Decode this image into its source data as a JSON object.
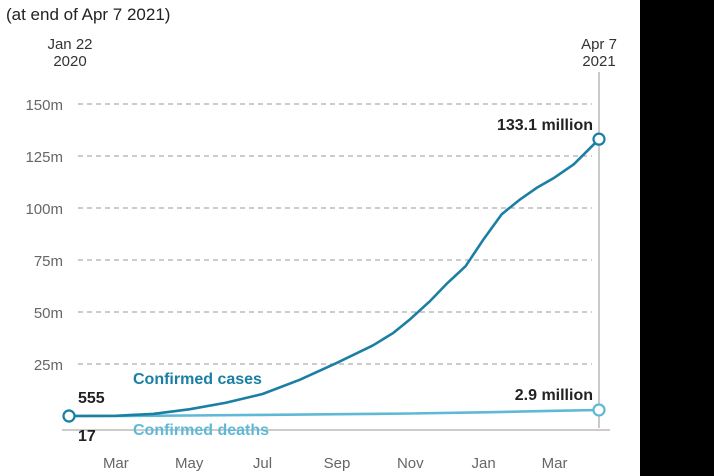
{
  "header": {
    "subtitle": "(at end of Apr 7 2021)"
  },
  "chart_data": {
    "type": "line",
    "subtitle": "(at end of Apr 7 2021)",
    "start_label": [
      "Jan 22",
      "2020"
    ],
    "end_label": [
      "Apr 7",
      "2021"
    ],
    "ylim": [
      0,
      150
    ],
    "y_unit": "m",
    "y_ticks": [
      {
        "value": 25,
        "label": "25m"
      },
      {
        "value": 50,
        "label": "50m"
      },
      {
        "value": 75,
        "label": "75m"
      },
      {
        "value": 100,
        "label": "100m"
      },
      {
        "value": 125,
        "label": "125m"
      },
      {
        "value": 150,
        "label": "150m"
      }
    ],
    "x_ticks": [
      {
        "day": 39,
        "label": "Mar"
      },
      {
        "day": 100,
        "label": "May"
      },
      {
        "day": 161,
        "label": "Jul"
      },
      {
        "day": 223,
        "label": "Sep"
      },
      {
        "day": 284,
        "label": "Nov"
      },
      {
        "day": 345,
        "label": "Jan"
      },
      {
        "day": 404,
        "label": "Mar"
      }
    ],
    "x_range_days": [
      0,
      441
    ],
    "grid": true,
    "series": [
      {
        "name": "Confirmed cases",
        "label": "Confirmed cases",
        "color": "#1a7fa3",
        "points": [
          [
            0,
            0.000555
          ],
          [
            39,
            0.1
          ],
          [
            70,
            1.0
          ],
          [
            100,
            3.2
          ],
          [
            130,
            6.3
          ],
          [
            161,
            10.6
          ],
          [
            192,
            17.4
          ],
          [
            223,
            25.6
          ],
          [
            253,
            34.0
          ],
          [
            270,
            40.0
          ],
          [
            284,
            46.6
          ],
          [
            300,
            55.0
          ],
          [
            315,
            64.0
          ],
          [
            330,
            72.0
          ],
          [
            345,
            85.0
          ],
          [
            360,
            97.0
          ],
          [
            375,
            104.0
          ],
          [
            390,
            110.0
          ],
          [
            404,
            114.6
          ],
          [
            420,
            121.0
          ],
          [
            441,
            133.1
          ]
        ],
        "start_value_label": "555",
        "end_value_label": "133.1 million"
      },
      {
        "name": "Confirmed deaths",
        "label": "Confirmed deaths",
        "color": "#5fb9d6",
        "points": [
          [
            0,
            1.7e-05
          ],
          [
            39,
            0.003
          ],
          [
            100,
            0.24
          ],
          [
            161,
            0.51
          ],
          [
            223,
            0.87
          ],
          [
            284,
            1.2
          ],
          [
            345,
            1.8
          ],
          [
            404,
            2.5
          ],
          [
            441,
            2.9
          ]
        ],
        "start_value_label": "17",
        "end_value_label": "2.9 million"
      }
    ]
  }
}
